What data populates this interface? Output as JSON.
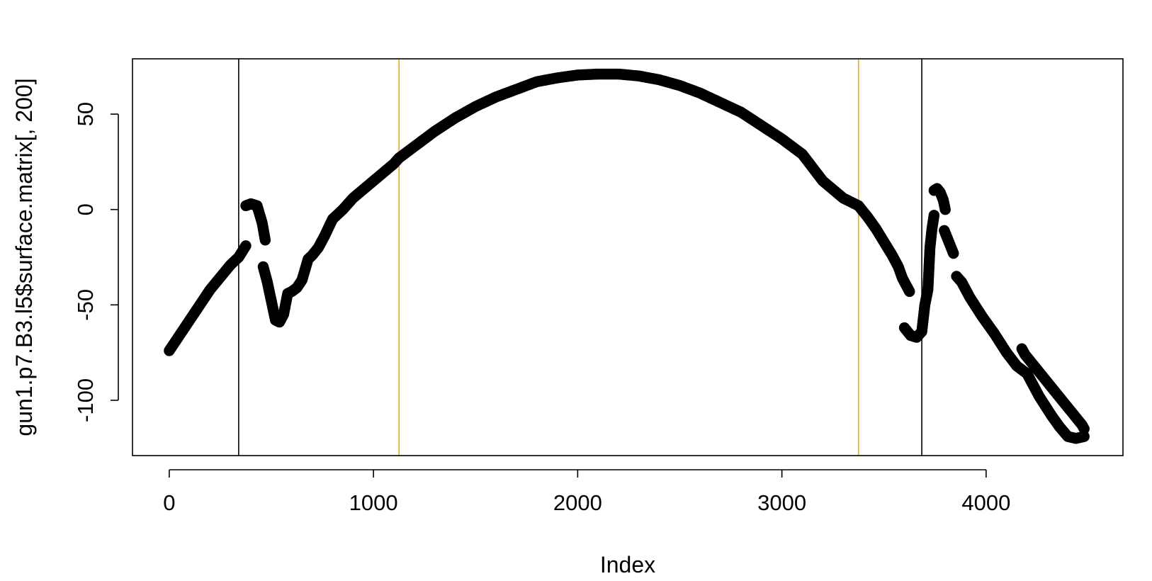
{
  "chart_data": {
    "type": "scatter",
    "title": "",
    "xlabel": "Index",
    "ylabel": "gun1.p7.B3.l5$surface.matrix[, 200]",
    "xlim": [
      -180,
      4670
    ],
    "ylim": [
      -129,
      79
    ],
    "x_ticks": [
      0,
      1000,
      2000,
      3000,
      4000
    ],
    "x_tick_labels": [
      "0",
      "1000",
      "2000",
      "3000",
      "4000"
    ],
    "y_ticks": [
      -100,
      -50,
      0,
      50
    ],
    "y_tick_labels": [
      "-100",
      "-50",
      "0",
      "50"
    ],
    "grid": false,
    "legend": "none",
    "point_style": "open-circle",
    "point_color": "#000000",
    "vertical_lines": [
      {
        "x": 340,
        "color": "#000000"
      },
      {
        "x": 1125,
        "color": "#FFA500"
      },
      {
        "x": 3375,
        "color": "#FFA500"
      },
      {
        "x": 3685,
        "color": "#000000"
      }
    ],
    "segments": [
      {
        "x": [
          0,
          100,
          200,
          300,
          340,
          375
        ],
        "y": [
          -74,
          -58,
          -42,
          -29,
          -25,
          -19
        ]
      },
      {
        "x": [
          375,
          400,
          430,
          455,
          470
        ],
        "y": [
          2,
          3,
          2,
          -7,
          -16
        ]
      },
      {
        "x": [
          460,
          480,
          500,
          520,
          540,
          560,
          580,
          600,
          625,
          650,
          680,
          700,
          730,
          760,
          800,
          850
        ],
        "y": [
          -30,
          -38,
          -48,
          -58,
          -59,
          -55,
          -44,
          -43,
          -41,
          -37,
          -26,
          -24,
          -20,
          -14,
          -5,
          0
        ]
      },
      {
        "x": [
          850,
          900,
          1000,
          1100,
          1125,
          1200,
          1300,
          1400,
          1500,
          1600,
          1700,
          1800,
          1900,
          2000,
          2100,
          2200,
          2300,
          2400,
          2500,
          2600,
          2700,
          2800,
          2900,
          3000,
          3100,
          3200,
          3300,
          3375
        ],
        "y": [
          0,
          6,
          15,
          24,
          27,
          33,
          41,
          48,
          54,
          59,
          63,
          67,
          69,
          70.5,
          71,
          71,
          70,
          68,
          65,
          61,
          56,
          51,
          44,
          37,
          29,
          15,
          6,
          2
        ]
      },
      {
        "x": [
          3375,
          3420,
          3460,
          3500,
          3540,
          3570,
          3590,
          3610,
          3625
        ],
        "y": [
          2,
          -4,
          -10,
          -17,
          -24,
          -30,
          -36,
          -40,
          -43
        ]
      },
      {
        "x": [
          3600,
          3630,
          3660,
          3685,
          3700,
          3715,
          3725,
          3735,
          3745
        ],
        "y": [
          -62,
          -66,
          -67,
          -64,
          -50,
          -42,
          -20,
          -10,
          -3
        ]
      },
      {
        "x": [
          3745,
          3760,
          3775,
          3790,
          3800
        ],
        "y": [
          10,
          11,
          9,
          5,
          0
        ]
      },
      {
        "x": [
          3795,
          3810,
          3825,
          3840
        ],
        "y": [
          -11,
          -15,
          -19,
          -23
        ]
      },
      {
        "x": [
          3855,
          3880,
          3920,
          3980,
          4040,
          4100,
          4150,
          4200,
          4260,
          4320,
          4360,
          4400,
          4440,
          4480
        ],
        "y": [
          -35,
          -38,
          -46,
          -56,
          -65,
          -75,
          -82,
          -86,
          -98,
          -108,
          -114,
          -119,
          -120,
          -119
        ]
      },
      {
        "x": [
          4175,
          4190,
          4470,
          4480
        ],
        "y": [
          -73,
          -76,
          -113,
          -115
        ]
      }
    ]
  }
}
